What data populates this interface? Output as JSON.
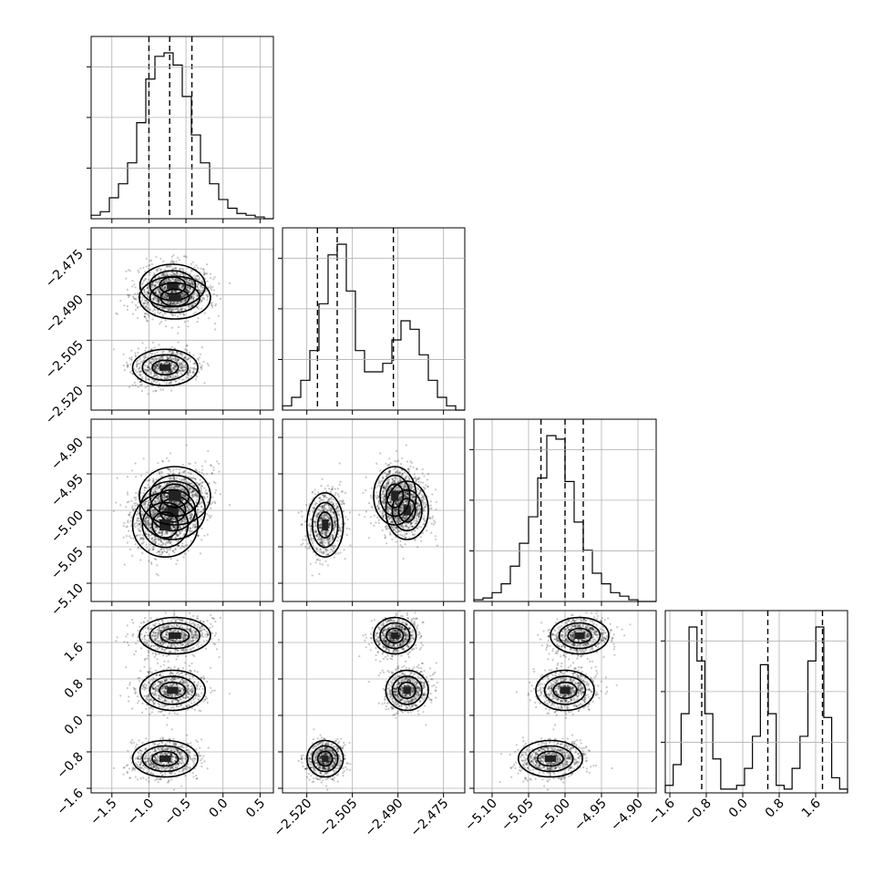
{
  "chart_data": {
    "type": "corner",
    "grid": true,
    "parameters": [
      {
        "ticks": [
          "−1.5",
          "−1.0",
          "−0.5",
          "0.0",
          "0.5"
        ],
        "tick_values": [
          -1.5,
          -1.0,
          -0.5,
          0.0,
          0.5
        ],
        "range": [
          -1.78,
          0.68
        ],
        "quantiles": [
          -1.0,
          -0.72,
          -0.42
        ]
      },
      {
        "ticks": [
          "−2.520",
          "−2.505",
          "−2.490",
          "−2.475"
        ],
        "tick_values": [
          -2.52,
          -2.505,
          -2.49,
          -2.475
        ],
        "range": [
          -2.528,
          -2.468
        ],
        "quantiles": [
          -2.5165,
          -2.51,
          -2.4915
        ]
      },
      {
        "ticks": [
          "−5.10",
          "−5.05",
          "−5.00",
          "−4.95",
          "−4.90"
        ],
        "tick_values": [
          -5.1,
          -5.05,
          -5.0,
          -4.95,
          -4.9
        ],
        "range": [
          -5.125,
          -4.875
        ],
        "quantiles": [
          -5.033,
          -5.0,
          -4.975
        ]
      },
      {
        "ticks": [
          "−1.6",
          "−0.8",
          "0.0",
          "0.8",
          "1.6"
        ],
        "tick_values": [
          -1.6,
          -0.8,
          0.0,
          0.8,
          1.6
        ],
        "range": [
          -1.7,
          2.3
        ],
        "quantiles": [
          -0.9,
          0.55,
          1.75
        ]
      }
    ],
    "histograms": [
      {
        "edges_range": [
          -1.78,
          0.68
        ],
        "counts": [
          2,
          4,
          12,
          20,
          32,
          55,
          80,
          93,
          95,
          88,
          70,
          48,
          32,
          20,
          11,
          6,
          3,
          2,
          1,
          0
        ]
      },
      {
        "edges_range": [
          -2.528,
          -2.468
        ],
        "counts": [
          2,
          6,
          14,
          28,
          50,
          73,
          78,
          56,
          28,
          18,
          18,
          22,
          33,
          42,
          38,
          26,
          14,
          6,
          2,
          0
        ]
      },
      {
        "edges_range": [
          -5.125,
          -4.875
        ],
        "counts": [
          1,
          2,
          5,
          10,
          20,
          33,
          48,
          70,
          94,
          92,
          68,
          45,
          29,
          16,
          10,
          5,
          3,
          1,
          0,
          0
        ]
      },
      {
        "edges_range": [
          -1.7,
          2.3
        ],
        "counts": [
          4,
          15,
          42,
          88,
          70,
          42,
          18,
          2,
          2,
          4,
          13,
          30,
          68,
          42,
          4,
          2,
          13,
          30,
          70,
          88,
          40,
          8,
          2
        ]
      }
    ],
    "clusters": [
      {
        "w": 0.333,
        "mean": [
          -0.68,
          -2.487,
          -5.0,
          0.55
        ],
        "sd": [
          0.22,
          0.0035,
          0.02,
          0.22
        ]
      },
      {
        "w": 0.333,
        "mean": [
          -0.78,
          -2.514,
          -5.02,
          -0.95
        ],
        "sd": [
          0.22,
          0.003,
          0.022,
          0.2
        ]
      },
      {
        "w": 0.334,
        "mean": [
          -0.65,
          -2.491,
          -4.98,
          1.75
        ],
        "sd": [
          0.24,
          0.0035,
          0.02,
          0.2
        ]
      }
    ]
  }
}
